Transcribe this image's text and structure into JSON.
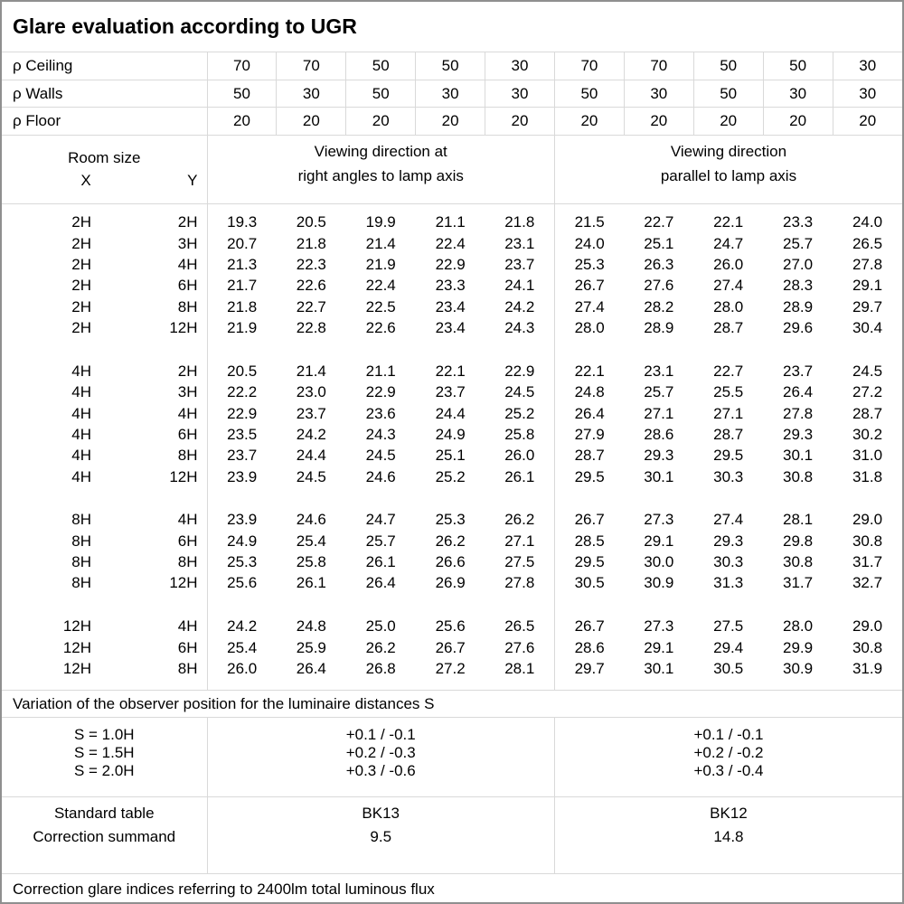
{
  "title": "Glare evaluation according to UGR",
  "reflectance_rows": [
    {
      "label": "ρ Ceiling",
      "values": [
        "70",
        "70",
        "50",
        "50",
        "30",
        "70",
        "70",
        "50",
        "50",
        "30"
      ]
    },
    {
      "label": "ρ Walls",
      "values": [
        "50",
        "30",
        "50",
        "30",
        "30",
        "50",
        "30",
        "50",
        "30",
        "30"
      ]
    },
    {
      "label": "ρ Floor",
      "values": [
        "20",
        "20",
        "20",
        "20",
        "20",
        "20",
        "20",
        "20",
        "20",
        "20"
      ]
    }
  ],
  "room_size": {
    "label": "Room size",
    "x": "X",
    "y": "Y"
  },
  "group_headers": {
    "right_angles": {
      "line1": "Viewing direction at",
      "line2": "right angles to lamp axis"
    },
    "parallel": {
      "line1": "Viewing direction",
      "line2": "parallel to lamp axis"
    }
  },
  "ugr_blocks": [
    {
      "rows": [
        {
          "x": "2H",
          "y": "2H",
          "right_angles": [
            "19.3",
            "20.5",
            "19.9",
            "21.1",
            "21.8"
          ],
          "parallel": [
            "21.5",
            "22.7",
            "22.1",
            "23.3",
            "24.0"
          ]
        },
        {
          "x": "2H",
          "y": "3H",
          "right_angles": [
            "20.7",
            "21.8",
            "21.4",
            "22.4",
            "23.1"
          ],
          "parallel": [
            "24.0",
            "25.1",
            "24.7",
            "25.7",
            "26.5"
          ]
        },
        {
          "x": "2H",
          "y": "4H",
          "right_angles": [
            "21.3",
            "22.3",
            "21.9",
            "22.9",
            "23.7"
          ],
          "parallel": [
            "25.3",
            "26.3",
            "26.0",
            "27.0",
            "27.8"
          ]
        },
        {
          "x": "2H",
          "y": "6H",
          "right_angles": [
            "21.7",
            "22.6",
            "22.4",
            "23.3",
            "24.1"
          ],
          "parallel": [
            "26.7",
            "27.6",
            "27.4",
            "28.3",
            "29.1"
          ]
        },
        {
          "x": "2H",
          "y": "8H",
          "right_angles": [
            "21.8",
            "22.7",
            "22.5",
            "23.4",
            "24.2"
          ],
          "parallel": [
            "27.4",
            "28.2",
            "28.0",
            "28.9",
            "29.7"
          ]
        },
        {
          "x": "2H",
          "y": "12H",
          "right_angles": [
            "21.9",
            "22.8",
            "22.6",
            "23.4",
            "24.3"
          ],
          "parallel": [
            "28.0",
            "28.9",
            "28.7",
            "29.6",
            "30.4"
          ]
        }
      ]
    },
    {
      "rows": [
        {
          "x": "4H",
          "y": "2H",
          "right_angles": [
            "20.5",
            "21.4",
            "21.1",
            "22.1",
            "22.9"
          ],
          "parallel": [
            "22.1",
            "23.1",
            "22.7",
            "23.7",
            "24.5"
          ]
        },
        {
          "x": "4H",
          "y": "3H",
          "right_angles": [
            "22.2",
            "23.0",
            "22.9",
            "23.7",
            "24.5"
          ],
          "parallel": [
            "24.8",
            "25.7",
            "25.5",
            "26.4",
            "27.2"
          ]
        },
        {
          "x": "4H",
          "y": "4H",
          "right_angles": [
            "22.9",
            "23.7",
            "23.6",
            "24.4",
            "25.2"
          ],
          "parallel": [
            "26.4",
            "27.1",
            "27.1",
            "27.8",
            "28.7"
          ]
        },
        {
          "x": "4H",
          "y": "6H",
          "right_angles": [
            "23.5",
            "24.2",
            "24.3",
            "24.9",
            "25.8"
          ],
          "parallel": [
            "27.9",
            "28.6",
            "28.7",
            "29.3",
            "30.2"
          ]
        },
        {
          "x": "4H",
          "y": "8H",
          "right_angles": [
            "23.7",
            "24.4",
            "24.5",
            "25.1",
            "26.0"
          ],
          "parallel": [
            "28.7",
            "29.3",
            "29.5",
            "30.1",
            "31.0"
          ]
        },
        {
          "x": "4H",
          "y": "12H",
          "right_angles": [
            "23.9",
            "24.5",
            "24.6",
            "25.2",
            "26.1"
          ],
          "parallel": [
            "29.5",
            "30.1",
            "30.3",
            "30.8",
            "31.8"
          ]
        }
      ]
    },
    {
      "rows": [
        {
          "x": "8H",
          "y": "4H",
          "right_angles": [
            "23.9",
            "24.6",
            "24.7",
            "25.3",
            "26.2"
          ],
          "parallel": [
            "26.7",
            "27.3",
            "27.4",
            "28.1",
            "29.0"
          ]
        },
        {
          "x": "8H",
          "y": "6H",
          "right_angles": [
            "24.9",
            "25.4",
            "25.7",
            "26.2",
            "27.1"
          ],
          "parallel": [
            "28.5",
            "29.1",
            "29.3",
            "29.8",
            "30.8"
          ]
        },
        {
          "x": "8H",
          "y": "8H",
          "right_angles": [
            "25.3",
            "25.8",
            "26.1",
            "26.6",
            "27.5"
          ],
          "parallel": [
            "29.5",
            "30.0",
            "30.3",
            "30.8",
            "31.7"
          ]
        },
        {
          "x": "8H",
          "y": "12H",
          "right_angles": [
            "25.6",
            "26.1",
            "26.4",
            "26.9",
            "27.8"
          ],
          "parallel": [
            "30.5",
            "30.9",
            "31.3",
            "31.7",
            "32.7"
          ]
        }
      ]
    },
    {
      "rows": [
        {
          "x": "12H",
          "y": "4H",
          "right_angles": [
            "24.2",
            "24.8",
            "25.0",
            "25.6",
            "26.5"
          ],
          "parallel": [
            "26.7",
            "27.3",
            "27.5",
            "28.0",
            "29.0"
          ]
        },
        {
          "x": "12H",
          "y": "6H",
          "right_angles": [
            "25.4",
            "25.9",
            "26.2",
            "26.7",
            "27.6"
          ],
          "parallel": [
            "28.6",
            "29.1",
            "29.4",
            "29.9",
            "30.8"
          ]
        },
        {
          "x": "12H",
          "y": "8H",
          "right_angles": [
            "26.0",
            "26.4",
            "26.8",
            "27.2",
            "28.1"
          ],
          "parallel": [
            "29.7",
            "30.1",
            "30.5",
            "30.9",
            "31.9"
          ]
        }
      ]
    }
  ],
  "variation": {
    "caption": "Variation of the observer position for the luminaire distances S",
    "labels": [
      "S = 1.0H",
      "S = 1.5H",
      "S = 2.0H"
    ],
    "right_angles": [
      "+0.1 / -0.1",
      "+0.2 / -0.3",
      "+0.3 / -0.6"
    ],
    "parallel": [
      "+0.1 / -0.1",
      "+0.2 / -0.2",
      "+0.3 / -0.4"
    ]
  },
  "standard": {
    "labels": [
      "Standard table",
      "Correction summand"
    ],
    "right_angles": [
      "BK13",
      "9.5"
    ],
    "parallel": [
      "BK12",
      "14.8"
    ]
  },
  "footer": "Correction glare indices referring to 2400lm total luminous flux",
  "colors": {
    "grid": "#d9d9d9",
    "outer_border": "#8f8f8f",
    "text": "#000000",
    "background": "#ffffff"
  }
}
